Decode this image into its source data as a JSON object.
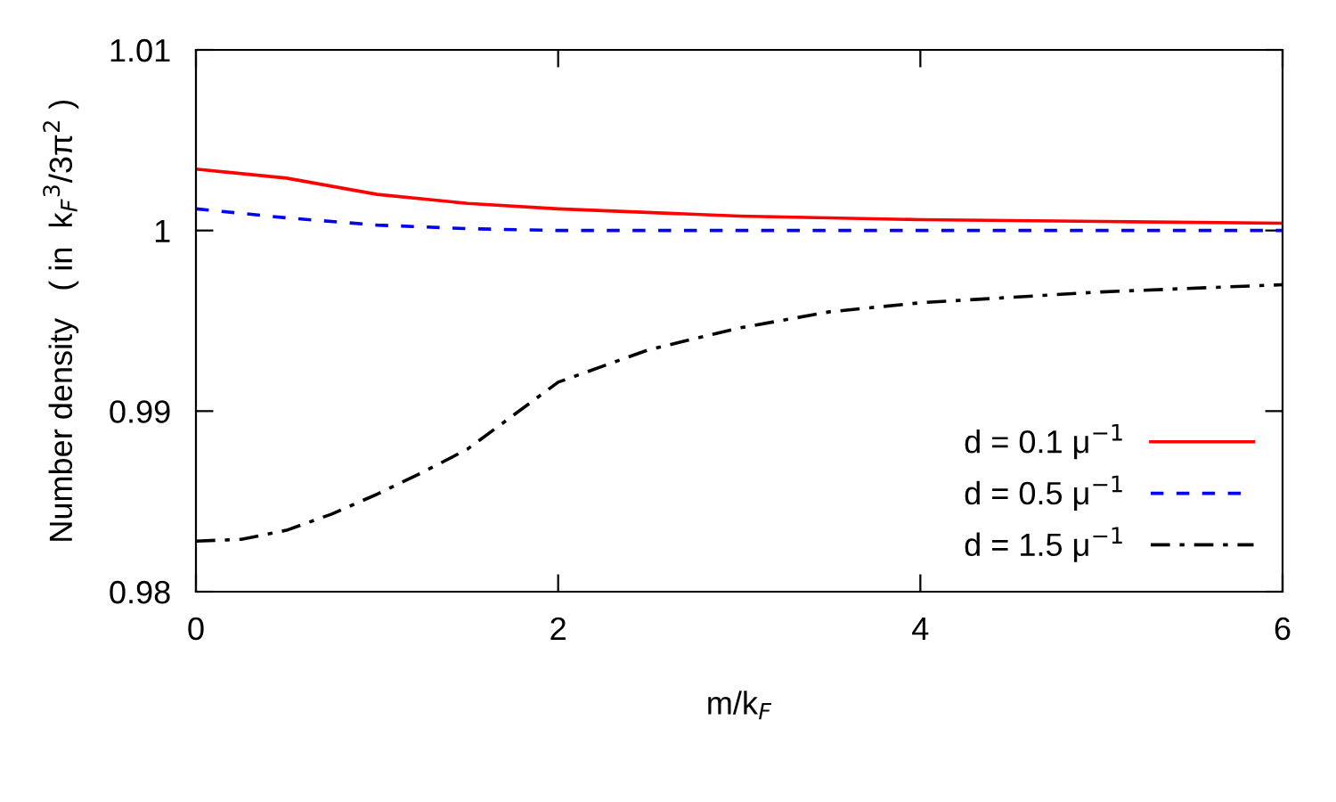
{
  "chart_data": {
    "type": "line",
    "xlabel": "m/k$_{F}$",
    "ylabel": "Number density   ( in  k$_{F}$$^{3}$/3π$^{2}$ )",
    "xlim": [
      0,
      6
    ],
    "xticks": [
      0,
      2,
      4,
      6
    ],
    "ylim": [
      0.98,
      1.01
    ],
    "yticks": [
      0.98,
      0.99,
      1,
      1.01
    ],
    "grid": false,
    "legend": "bottom right",
    "marker": "none",
    "series": [
      {
        "name": "d = 0.1 μ$^{−1}$",
        "color": "#ff0000",
        "line_style": "solid",
        "x": [
          0,
          0.5,
          1,
          1.5,
          2,
          3,
          4,
          5,
          6
        ],
        "values": [
          1.0034,
          1.0029,
          1.002,
          1.0015,
          1.0012,
          1.0008,
          1.0006,
          1.0005,
          1.0004
        ]
      },
      {
        "name": "d = 0.5 μ$^{−1}$",
        "color": "#0000ff",
        "line_style": "dashed",
        "x": [
          0,
          0.5,
          1,
          1.5,
          2,
          3,
          4,
          5,
          6
        ],
        "values": [
          1.0012,
          1.0007,
          1.0003,
          1.0001,
          1.0,
          1.0,
          1.0,
          1.0,
          1.0
        ]
      },
      {
        "name": "d = 1.5 μ$^{−1}$",
        "color": "#000000",
        "line_style": "dashdot",
        "x": [
          0,
          0.25,
          0.5,
          0.75,
          1,
          1.25,
          1.5,
          2,
          2.5,
          3,
          3.5,
          4,
          5,
          6
        ],
        "values": [
          0.9828,
          0.9829,
          0.9834,
          0.9843,
          0.9854,
          0.9866,
          0.9879,
          0.9916,
          0.9934,
          0.9946,
          0.9955,
          0.996,
          0.9966,
          0.997
        ]
      }
    ]
  }
}
